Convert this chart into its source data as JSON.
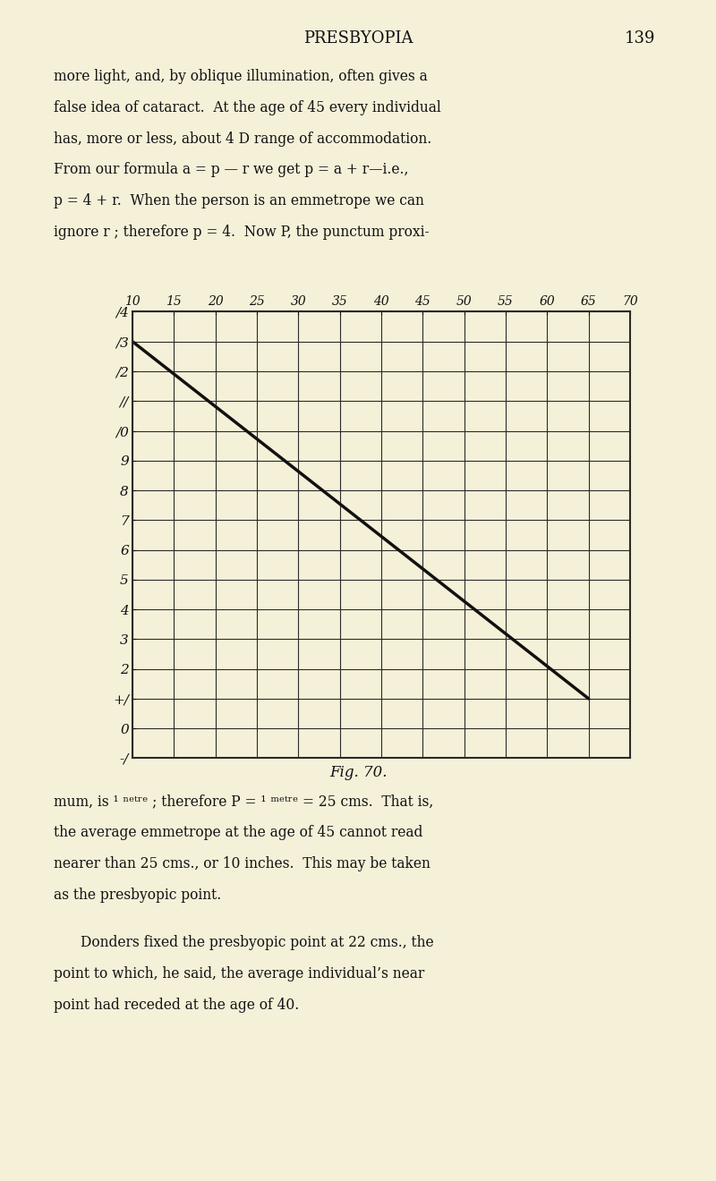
{
  "background_color": "#f5f0d8",
  "page_background": "#f5f0d8",
  "grid_color": "#2a2a2a",
  "line_color": "#111111",
  "text_color": "#111111",
  "title": "PRESBYOPIA",
  "page_number": "139",
  "fig_label": "Fig. 70.",
  "x_ticks": [
    10,
    15,
    20,
    25,
    30,
    35,
    40,
    45,
    50,
    55,
    60,
    65,
    70
  ],
  "y_ticks": [
    -1,
    0,
    1,
    2,
    3,
    4,
    5,
    6,
    7,
    8,
    9,
    10,
    11,
    12,
    13,
    14
  ],
  "y_tick_labels": [
    "-/",
    "0",
    "+/",
    "2",
    "3",
    "4",
    "5",
    "6",
    "7",
    "8",
    "9",
    "/0",
    "//",
    "/2",
    "/3",
    "/4"
  ],
  "x_min": 10,
  "x_max": 70,
  "y_min": -1,
  "y_max": 14,
  "line_x": [
    10,
    65
  ],
  "line_y": [
    13.0,
    1.0
  ],
  "para1_lines": [
    "more light, and, by oblique illumination, often gives a",
    "false idea of cataract.  At the age of 45 every individual",
    "has, more or less, about 4 D range of accommodation.",
    "From our formula a = p — r we get p = a + r—i.e.,",
    "p = 4 + r.  When the person is an emmetrope we can",
    "ignore r ; therefore p = 4.  Now P, the punctum proxi-"
  ],
  "para2_lines": [
    "mum, is ¹ ⁿᵉᵗʳᵉ ; therefore P = ¹ ᵐᵉᵗʳᵉ = 25 cms.  That is,",
    "the average emmetrope at the age of 45 cannot read",
    "nearer than 25 cms., or 10 inches.  This may be taken",
    "as the presbyopic point."
  ],
  "para3_lines": [
    "Donders fixed the presbyopic point at 22 cms., the",
    "point to which, he said, the average individual’s near",
    "point had receded at the age of 40."
  ]
}
